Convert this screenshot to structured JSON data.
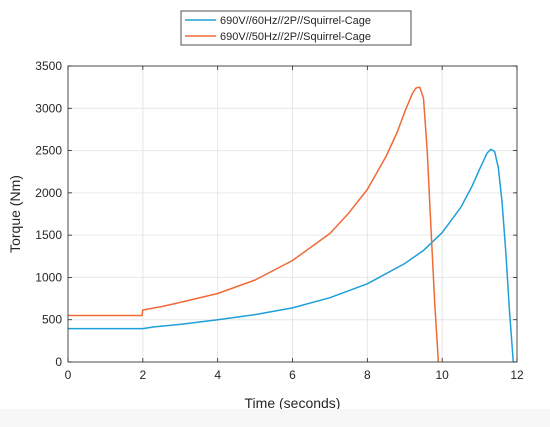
{
  "chart_data": {
    "type": "line",
    "title": "",
    "xlabel": "Time (seconds)",
    "ylabel": "Torque (Nm)",
    "xlim": [
      0,
      12
    ],
    "ylim": [
      0,
      3500
    ],
    "xticks": [
      0,
      2,
      4,
      6,
      8,
      10,
      12
    ],
    "yticks": [
      0,
      500,
      1000,
      1500,
      2000,
      2500,
      3000,
      3500
    ],
    "grid": true,
    "legend_position": "top-center (outside)",
    "series": [
      {
        "name": "690V//60Hz//2P//Squirrel-Cage",
        "color": "#1f9fd9",
        "x": [
          0,
          2.0,
          2.3,
          3.0,
          4.0,
          5.0,
          6.0,
          7.0,
          8.0,
          9.0,
          9.5,
          10.0,
          10.5,
          10.8,
          11.0,
          11.2,
          11.3,
          11.4,
          11.5,
          11.6,
          11.7,
          11.8,
          11.9
        ],
        "y": [
          395,
          395,
          415,
          445,
          500,
          560,
          640,
          760,
          925,
          1165,
          1320,
          1530,
          1830,
          2080,
          2280,
          2470,
          2515,
          2490,
          2300,
          1900,
          1300,
          600,
          0
        ]
      },
      {
        "name": "690V//50Hz//2P//Squirrel-Cage",
        "color": "#f06a35",
        "x": [
          0,
          1.98,
          2.0,
          2.5,
          3.0,
          4.0,
          5.0,
          6.0,
          7.0,
          7.5,
          8.0,
          8.5,
          8.8,
          9.0,
          9.2,
          9.3,
          9.4,
          9.5,
          9.6,
          9.7,
          9.8,
          9.9
        ],
        "y": [
          550,
          550,
          615,
          655,
          705,
          810,
          970,
          1200,
          1520,
          1760,
          2040,
          2430,
          2720,
          2960,
          3170,
          3240,
          3250,
          3120,
          2500,
          1600,
          700,
          0
        ]
      }
    ]
  }
}
